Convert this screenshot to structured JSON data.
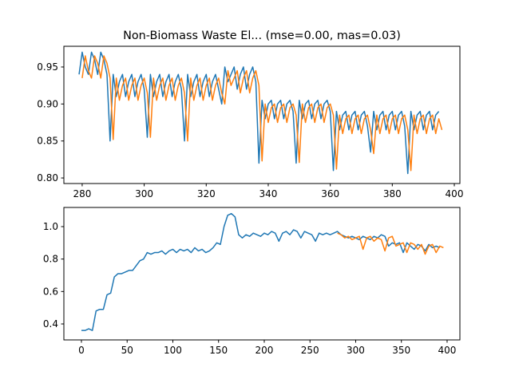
{
  "chart_data": [
    {
      "type": "line",
      "title": "Non-Biomass Waste El... (mse=0.00, mas=0.03)",
      "xlim": [
        274.1,
        401.8
      ],
      "xticks": [
        280,
        300,
        320,
        340,
        360,
        380,
        400
      ],
      "ylim": [
        0.7925,
        0.978
      ],
      "yticks": [
        {
          "value": 0.8,
          "label": "0.80"
        },
        0.85,
        {
          "value": 0.9,
          "label": "0.90"
        },
        0.95
      ],
      "series": [
        {
          "color": "#1f77b4",
          "x": [
            279,
            280,
            281,
            282,
            283,
            284,
            285,
            286,
            287,
            288,
            289,
            290,
            291,
            292,
            293,
            294,
            295,
            296,
            297,
            298,
            299,
            300,
            301,
            302,
            303,
            304,
            305,
            306,
            307,
            308,
            309,
            310,
            311,
            312,
            313,
            314,
            315,
            316,
            317,
            318,
            319,
            320,
            321,
            322,
            323,
            324,
            325,
            326,
            327,
            328,
            329,
            330,
            331,
            332,
            333,
            334,
            335,
            336,
            337,
            338,
            339,
            340,
            341,
            342,
            343,
            344,
            345,
            346,
            347,
            348,
            349,
            350,
            351,
            352,
            353,
            354,
            355,
            356,
            357,
            358,
            359,
            360,
            361,
            362,
            363,
            364,
            365,
            366,
            367,
            368,
            369,
            370,
            371,
            372,
            373,
            374,
            375,
            376,
            377,
            378,
            379,
            380,
            381,
            382,
            383,
            384,
            385,
            386,
            387,
            388,
            389,
            390,
            391,
            392,
            393,
            394,
            395
          ],
          "values": [
            0.94,
            0.97,
            0.95,
            0.94,
            0.97,
            0.96,
            0.94,
            0.97,
            0.96,
            0.94,
            0.85,
            0.94,
            0.91,
            0.93,
            0.94,
            0.91,
            0.93,
            0.94,
            0.91,
            0.93,
            0.94,
            0.92,
            0.855,
            0.94,
            0.91,
            0.93,
            0.94,
            0.91,
            0.93,
            0.94,
            0.91,
            0.93,
            0.94,
            0.92,
            0.85,
            0.94,
            0.91,
            0.93,
            0.94,
            0.91,
            0.93,
            0.94,
            0.91,
            0.93,
            0.94,
            0.92,
            0.9,
            0.95,
            0.93,
            0.94,
            0.95,
            0.92,
            0.94,
            0.95,
            0.92,
            0.94,
            0.95,
            0.93,
            0.82,
            0.905,
            0.88,
            0.9,
            0.905,
            0.88,
            0.9,
            0.905,
            0.88,
            0.9,
            0.905,
            0.89,
            0.82,
            0.905,
            0.88,
            0.9,
            0.905,
            0.88,
            0.9,
            0.905,
            0.88,
            0.9,
            0.905,
            0.89,
            0.81,
            0.89,
            0.865,
            0.885,
            0.89,
            0.865,
            0.885,
            0.89,
            0.865,
            0.885,
            0.89,
            0.87,
            0.835,
            0.89,
            0.865,
            0.885,
            0.89,
            0.865,
            0.885,
            0.89,
            0.865,
            0.885,
            0.89,
            0.87,
            0.806,
            0.89,
            0.865,
            0.885,
            0.89,
            0.865,
            0.885,
            0.89,
            0.865,
            0.885,
            0.89
          ]
        },
        {
          "color": "#ff7f0e",
          "x": [
            280,
            281,
            282,
            283,
            284,
            285,
            286,
            287,
            288,
            289,
            290,
            291,
            292,
            293,
            294,
            295,
            296,
            297,
            298,
            299,
            300,
            301,
            302,
            303,
            304,
            305,
            306,
            307,
            308,
            309,
            310,
            311,
            312,
            313,
            314,
            315,
            316,
            317,
            318,
            319,
            320,
            321,
            322,
            323,
            324,
            325,
            326,
            327,
            328,
            329,
            330,
            331,
            332,
            333,
            334,
            335,
            336,
            337,
            338,
            339,
            340,
            341,
            342,
            343,
            344,
            345,
            346,
            347,
            348,
            349,
            350,
            351,
            352,
            353,
            354,
            355,
            356,
            357,
            358,
            359,
            360,
            361,
            362,
            363,
            364,
            365,
            366,
            367,
            368,
            369,
            370,
            371,
            372,
            373,
            374,
            375,
            376,
            377,
            378,
            379,
            380,
            381,
            382,
            383,
            384,
            385,
            386,
            387,
            388,
            389,
            390,
            391,
            392,
            393,
            394,
            395,
            396
          ],
          "values": [
            0.935,
            0.965,
            0.945,
            0.935,
            0.965,
            0.955,
            0.935,
            0.965,
            0.955,
            0.935,
            0.852,
            0.935,
            0.905,
            0.925,
            0.935,
            0.905,
            0.925,
            0.935,
            0.905,
            0.925,
            0.935,
            0.915,
            0.855,
            0.935,
            0.905,
            0.925,
            0.935,
            0.905,
            0.925,
            0.935,
            0.905,
            0.925,
            0.935,
            0.915,
            0.85,
            0.935,
            0.905,
            0.925,
            0.935,
            0.905,
            0.925,
            0.935,
            0.905,
            0.925,
            0.935,
            0.915,
            0.9,
            0.945,
            0.925,
            0.935,
            0.945,
            0.915,
            0.935,
            0.945,
            0.915,
            0.935,
            0.945,
            0.925,
            0.823,
            0.9,
            0.875,
            0.895,
            0.9,
            0.875,
            0.895,
            0.9,
            0.875,
            0.895,
            0.9,
            0.885,
            0.821,
            0.9,
            0.875,
            0.895,
            0.9,
            0.875,
            0.895,
            0.9,
            0.875,
            0.895,
            0.9,
            0.885,
            0.812,
            0.885,
            0.86,
            0.88,
            0.885,
            0.86,
            0.88,
            0.885,
            0.86,
            0.88,
            0.885,
            0.865,
            0.833,
            0.885,
            0.86,
            0.88,
            0.885,
            0.86,
            0.88,
            0.885,
            0.86,
            0.88,
            0.885,
            0.865,
            0.81,
            0.885,
            0.86,
            0.88,
            0.885,
            0.86,
            0.88,
            0.885,
            0.86,
            0.88,
            0.865
          ]
        }
      ]
    },
    {
      "type": "line",
      "xlim": [
        -19.2,
        414
      ],
      "xticks": [
        0,
        50,
        100,
        150,
        200,
        250,
        300,
        350,
        400
      ],
      "ylim": [
        0.3016,
        1.118
      ],
      "yticks": [
        0.4,
        0.6,
        0.8,
        {
          "value": 1,
          "label": "1.0"
        }
      ],
      "series": [
        {
          "color": "#1f77b4",
          "x": [
            0,
            4,
            8,
            12,
            16,
            20,
            24,
            28,
            32,
            36,
            40,
            44,
            48,
            52,
            56,
            60,
            64,
            68,
            72,
            76,
            80,
            84,
            88,
            92,
            96,
            100,
            104,
            108,
            112,
            116,
            120,
            124,
            128,
            132,
            136,
            140,
            144,
            148,
            152,
            156,
            160,
            164,
            168,
            172,
            176,
            180,
            184,
            188,
            192,
            196,
            200,
            204,
            208,
            212,
            216,
            220,
            224,
            228,
            232,
            236,
            240,
            244,
            248,
            252,
            256,
            260,
            264,
            268,
            272,
            276,
            280,
            284,
            288,
            292,
            296,
            300,
            304,
            308,
            312,
            316,
            320,
            324,
            328,
            332,
            336,
            340,
            344,
            348,
            352,
            356,
            360,
            364,
            368,
            372,
            376,
            380,
            384,
            388,
            392
          ],
          "values": [
            0.36,
            0.36,
            0.37,
            0.36,
            0.48,
            0.49,
            0.49,
            0.58,
            0.59,
            0.69,
            0.71,
            0.71,
            0.72,
            0.73,
            0.73,
            0.76,
            0.79,
            0.8,
            0.84,
            0.83,
            0.84,
            0.84,
            0.85,
            0.83,
            0.85,
            0.86,
            0.84,
            0.86,
            0.85,
            0.86,
            0.84,
            0.87,
            0.85,
            0.86,
            0.84,
            0.85,
            0.87,
            0.9,
            0.89,
            1.0,
            1.07,
            1.08,
            1.06,
            0.95,
            0.93,
            0.95,
            0.94,
            0.96,
            0.95,
            0.94,
            0.96,
            0.95,
            0.97,
            0.96,
            0.91,
            0.96,
            0.97,
            0.95,
            0.98,
            0.97,
            0.93,
            0.97,
            0.96,
            0.95,
            0.91,
            0.96,
            0.95,
            0.96,
            0.95,
            0.96,
            0.97,
            0.95,
            0.94,
            0.93,
            0.94,
            0.93,
            0.92,
            0.94,
            0.93,
            0.92,
            0.94,
            0.93,
            0.95,
            0.94,
            0.88,
            0.9,
            0.89,
            0.9,
            0.84,
            0.9,
            0.88,
            0.86,
            0.89,
            0.88,
            0.85,
            0.89,
            0.87,
            0.88,
            0.87
          ]
        },
        {
          "color": "#ff7f0e",
          "x": [
            280,
            284,
            288,
            292,
            296,
            300,
            304,
            308,
            312,
            316,
            320,
            324,
            328,
            332,
            336,
            340,
            344,
            348,
            352,
            356,
            360,
            364,
            368,
            372,
            376,
            380,
            384,
            388,
            392,
            396
          ],
          "values": [
            0.96,
            0.95,
            0.93,
            0.94,
            0.92,
            0.93,
            0.94,
            0.86,
            0.93,
            0.94,
            0.91,
            0.93,
            0.92,
            0.85,
            0.93,
            0.94,
            0.88,
            0.89,
            0.9,
            0.84,
            0.9,
            0.89,
            0.86,
            0.89,
            0.83,
            0.88,
            0.89,
            0.84,
            0.88,
            0.87
          ]
        }
      ]
    }
  ]
}
